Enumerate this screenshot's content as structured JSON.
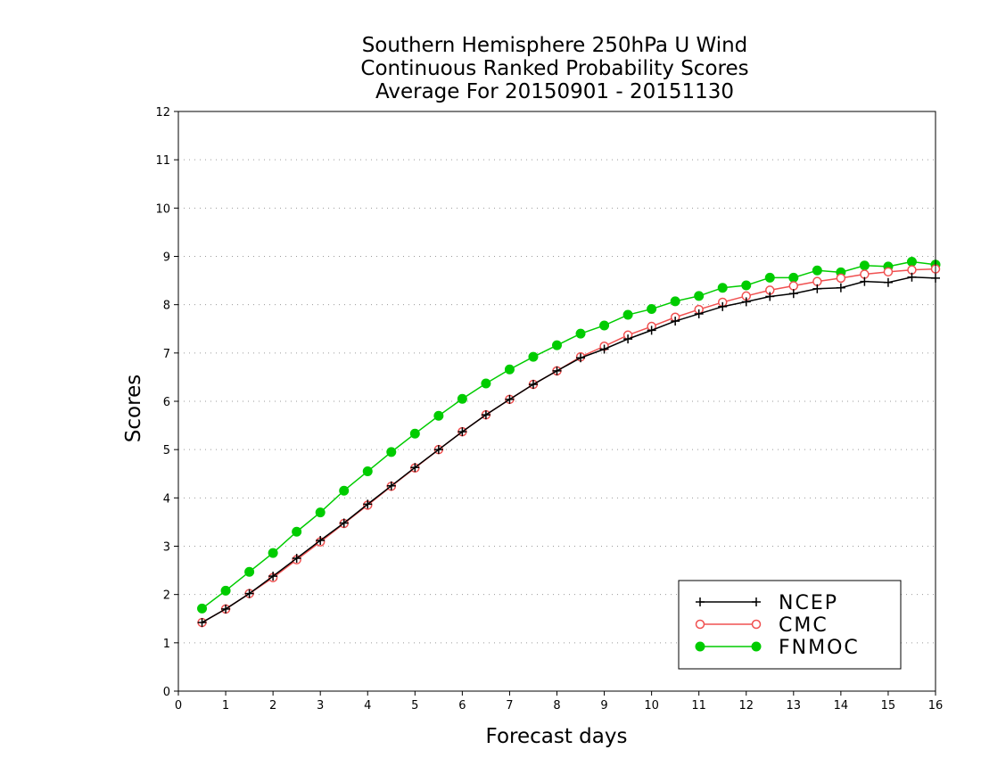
{
  "chart_data": {
    "type": "line",
    "title": [
      "Southern Hemisphere 250hPa U Wind",
      "Continuous Ranked Probability Scores",
      "Average For 20150901 - 20151130"
    ],
    "xlabel": "Forecast days",
    "ylabel": "Scores",
    "xlim": [
      0,
      16
    ],
    "ylim": [
      0,
      12
    ],
    "xticks": [
      "0",
      "1",
      "2",
      "3",
      "4",
      "5",
      "6",
      "7",
      "8",
      "9",
      "10",
      "11",
      "12",
      "13",
      "14",
      "15",
      "16"
    ],
    "yticks": [
      "0",
      "1",
      "2",
      "3",
      "4",
      "5",
      "6",
      "7",
      "8",
      "9",
      "10",
      "11",
      "12"
    ],
    "grid": "horizontal dotted",
    "legend_position": "bottom-right",
    "x": [
      0.5,
      1,
      1.5,
      2,
      2.5,
      3,
      3.5,
      4,
      4.5,
      5,
      5.5,
      6,
      6.5,
      7,
      7.5,
      8,
      8.5,
      9,
      9.5,
      10,
      10.5,
      11,
      11.5,
      12,
      12.5,
      13,
      13.5,
      14,
      14.5,
      15,
      15.5,
      16
    ],
    "series": [
      {
        "name": "NCEP",
        "color": "#000000",
        "marker": "plus",
        "values": [
          1.42,
          1.7,
          2.02,
          2.38,
          2.75,
          3.12,
          3.48,
          3.87,
          4.25,
          4.63,
          5.0,
          5.37,
          5.72,
          6.04,
          6.35,
          6.63,
          6.9,
          7.08,
          7.29,
          7.47,
          7.66,
          7.81,
          7.96,
          8.06,
          8.17,
          8.23,
          8.33,
          8.35,
          8.48,
          8.46,
          8.57,
          8.55
        ]
      },
      {
        "name": "CMC",
        "color": "#f05050",
        "marker": "open-circle",
        "values": [
          1.42,
          1.7,
          2.02,
          2.35,
          2.72,
          3.09,
          3.47,
          3.85,
          4.24,
          4.62,
          5.0,
          5.37,
          5.72,
          6.04,
          6.35,
          6.63,
          6.92,
          7.14,
          7.37,
          7.55,
          7.74,
          7.9,
          8.05,
          8.18,
          8.3,
          8.39,
          8.48,
          8.55,
          8.63,
          8.68,
          8.72,
          8.74
        ]
      },
      {
        "name": "FNMOC",
        "color": "#00cc00",
        "marker": "filled-circle",
        "values": [
          1.71,
          2.08,
          2.47,
          2.86,
          3.3,
          3.7,
          4.15,
          4.55,
          4.95,
          5.33,
          5.7,
          6.05,
          6.37,
          6.66,
          6.92,
          7.16,
          7.4,
          7.57,
          7.79,
          7.91,
          8.07,
          8.18,
          8.35,
          8.4,
          8.56,
          8.56,
          8.71,
          8.67,
          8.81,
          8.79,
          8.89,
          8.83
        ]
      }
    ]
  }
}
